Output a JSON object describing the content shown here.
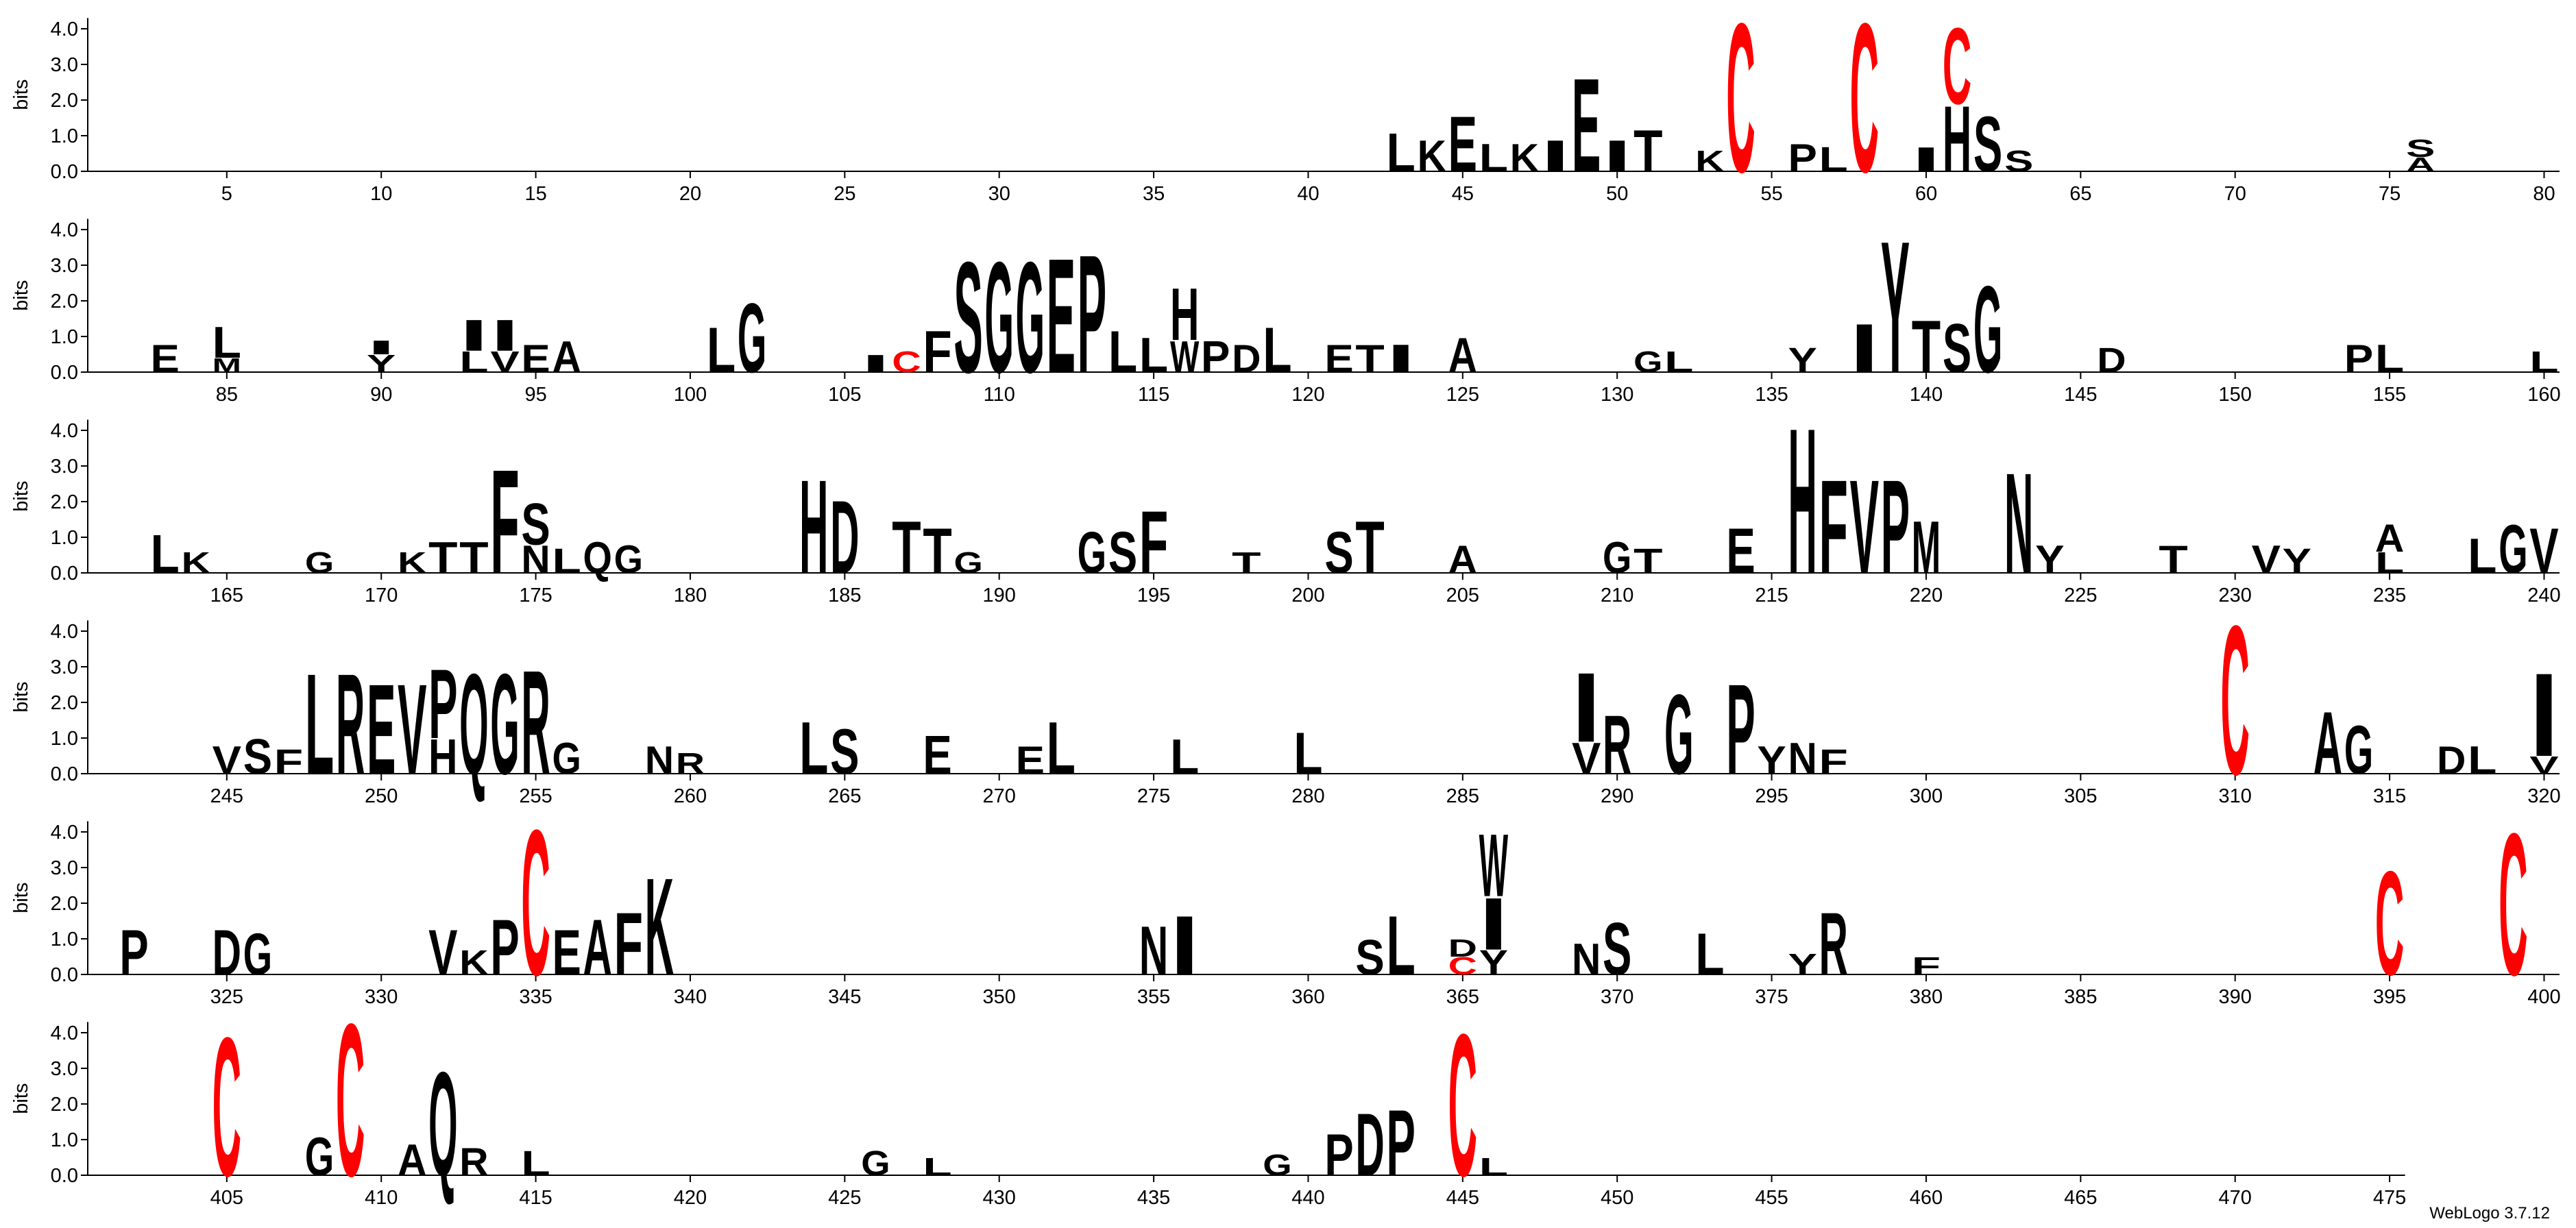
{
  "chart_data": {
    "type": "logo",
    "ylabel": "bits",
    "footer": "WebLogo 3.7.12",
    "ylim": [
      0,
      4.3
    ],
    "yticks": [
      {
        "value": 0,
        "label": "0.0"
      },
      {
        "value": 1,
        "label": "1.0"
      },
      {
        "value": 2,
        "label": "2.0"
      },
      {
        "value": 3,
        "label": "3.0"
      },
      {
        "value": 4,
        "label": "4.0"
      }
    ],
    "color": "#000000",
    "letter_colors": {
      "C": "#ff0000"
    },
    "rows": [
      {
        "xlim": [
          0.5,
          80.5
        ],
        "xticks": [
          5,
          10,
          15,
          20,
          25,
          30,
          35,
          40,
          45,
          50,
          55,
          60,
          65,
          70,
          75,
          80
        ]
      },
      {
        "xlim": [
          80.5,
          160.5
        ],
        "xticks": [
          85,
          90,
          95,
          100,
          105,
          110,
          115,
          120,
          125,
          130,
          135,
          140,
          145,
          150,
          155,
          160
        ]
      },
      {
        "xlim": [
          160.5,
          240.5
        ],
        "xticks": [
          165,
          170,
          175,
          180,
          185,
          190,
          195,
          200,
          205,
          210,
          215,
          220,
          225,
          230,
          235,
          240
        ]
      },
      {
        "xlim": [
          240.5,
          320.5
        ],
        "xticks": [
          245,
          250,
          255,
          260,
          265,
          270,
          275,
          280,
          285,
          290,
          295,
          300,
          305,
          310,
          315,
          320
        ]
      },
      {
        "xlim": [
          320.5,
          400.5
        ],
        "xticks": [
          325,
          330,
          335,
          340,
          345,
          350,
          355,
          360,
          365,
          370,
          375,
          380,
          385,
          390,
          395,
          400
        ]
      },
      {
        "xlim": [
          400.5,
          475.5
        ],
        "xticks": [
          405,
          410,
          415,
          420,
          425,
          430,
          435,
          440,
          445,
          450,
          455,
          460,
          465,
          470,
          475
        ]
      }
    ],
    "letters": [
      {
        "position": 43,
        "letter": "L",
        "bits": 1.1
      },
      {
        "position": 44,
        "letter": "K",
        "bits": 0.9
      },
      {
        "position": 45,
        "letter": "E",
        "bits": 1.6
      },
      {
        "position": 46,
        "letter": "L",
        "bits": 0.8
      },
      {
        "position": 47,
        "letter": "K",
        "bits": 0.8
      },
      {
        "position": 48,
        "letter": "I",
        "bits": 0.9
      },
      {
        "position": 49,
        "letter": "E",
        "bits": 2.7
      },
      {
        "position": 50,
        "letter": "I",
        "bits": 0.9
      },
      {
        "position": 51,
        "letter": "T",
        "bits": 1.2
      },
      {
        "position": 53,
        "letter": "K",
        "bits": 0.6
      },
      {
        "position": 54,
        "letter": "C",
        "bits": 4.3
      },
      {
        "position": 56,
        "letter": "P",
        "bits": 0.8
      },
      {
        "position": 57,
        "letter": "L",
        "bits": 0.7
      },
      {
        "position": 58,
        "letter": "C",
        "bits": 4.3
      },
      {
        "position": 60,
        "letter": "I",
        "bits": 0.7
      },
      {
        "position": 61,
        "letter": "H",
        "bits": 1.9
      },
      {
        "position": 61,
        "letter": "C",
        "bits": 2.2
      },
      {
        "position": 62,
        "letter": "S",
        "bits": 1.6
      },
      {
        "position": 63,
        "letter": "S",
        "bits": 0.6
      },
      {
        "position": 76,
        "letter": "A",
        "bits": 0.4
      },
      {
        "position": 76,
        "letter": "S",
        "bits": 0.5
      },
      {
        "position": 83,
        "letter": "E",
        "bits": 0.8
      },
      {
        "position": 85,
        "letter": "M",
        "bits": 0.4
      },
      {
        "position": 85,
        "letter": "L",
        "bits": 0.9
      },
      {
        "position": 90,
        "letter": "Y",
        "bits": 0.5
      },
      {
        "position": 90,
        "letter": "I",
        "bits": 0.4
      },
      {
        "position": 93,
        "letter": "L",
        "bits": 0.6
      },
      {
        "position": 93,
        "letter": "I",
        "bits": 0.9
      },
      {
        "position": 94,
        "letter": "V",
        "bits": 0.6
      },
      {
        "position": 94,
        "letter": "I",
        "bits": 0.9
      },
      {
        "position": 95,
        "letter": "E",
        "bits": 0.8
      },
      {
        "position": 96,
        "letter": "A",
        "bits": 0.9
      },
      {
        "position": 101,
        "letter": "L",
        "bits": 1.3
      },
      {
        "position": 102,
        "letter": "G",
        "bits": 2.0
      },
      {
        "position": 106,
        "letter": "I",
        "bits": 0.5
      },
      {
        "position": 107,
        "letter": "C",
        "bits": 0.6
      },
      {
        "position": 108,
        "letter": "F",
        "bits": 1.2
      },
      {
        "position": 109,
        "letter": "S",
        "bits": 3.2
      },
      {
        "position": 110,
        "letter": "G",
        "bits": 3.2
      },
      {
        "position": 111,
        "letter": "G",
        "bits": 3.2
      },
      {
        "position": 112,
        "letter": "E",
        "bits": 3.3
      },
      {
        "position": 113,
        "letter": "P",
        "bits": 3.4
      },
      {
        "position": 114,
        "letter": "L",
        "bits": 1.2
      },
      {
        "position": 115,
        "letter": "L",
        "bits": 1.0
      },
      {
        "position": 116,
        "letter": "W",
        "bits": 0.9
      },
      {
        "position": 116,
        "letter": "H",
        "bits": 1.5
      },
      {
        "position": 117,
        "letter": "P",
        "bits": 0.9
      },
      {
        "position": 118,
        "letter": "D",
        "bits": 0.8
      },
      {
        "position": 119,
        "letter": "L",
        "bits": 1.3
      },
      {
        "position": 121,
        "letter": "E",
        "bits": 0.8
      },
      {
        "position": 122,
        "letter": "T",
        "bits": 0.8
      },
      {
        "position": 123,
        "letter": "I",
        "bits": 0.8
      },
      {
        "position": 125,
        "letter": "A",
        "bits": 1.0
      },
      {
        "position": 131,
        "letter": "G",
        "bits": 0.6
      },
      {
        "position": 132,
        "letter": "L",
        "bits": 0.6
      },
      {
        "position": 136,
        "letter": "Y",
        "bits": 0.7
      },
      {
        "position": 138,
        "letter": "I",
        "bits": 1.4
      },
      {
        "position": 139,
        "letter": "Y",
        "bits": 3.8
      },
      {
        "position": 140,
        "letter": "T",
        "bits": 1.5
      },
      {
        "position": 141,
        "letter": "S",
        "bits": 1.4
      },
      {
        "position": 142,
        "letter": "G",
        "bits": 2.5
      },
      {
        "position": 146,
        "letter": "D",
        "bits": 0.7
      },
      {
        "position": 154,
        "letter": "P",
        "bits": 0.8
      },
      {
        "position": 155,
        "letter": "L",
        "bits": 0.8
      },
      {
        "position": 160,
        "letter": "L",
        "bits": 0.6
      },
      {
        "position": 163,
        "letter": "L",
        "bits": 1.1
      },
      {
        "position": 164,
        "letter": "K",
        "bits": 0.6
      },
      {
        "position": 168,
        "letter": "G",
        "bits": 0.6
      },
      {
        "position": 171,
        "letter": "K",
        "bits": 0.6
      },
      {
        "position": 172,
        "letter": "T",
        "bits": 0.9
      },
      {
        "position": 173,
        "letter": "T",
        "bits": 0.9
      },
      {
        "position": 174,
        "letter": "F",
        "bits": 3.0
      },
      {
        "position": 175,
        "letter": "N",
        "bits": 0.8
      },
      {
        "position": 175,
        "letter": "S",
        "bits": 1.2
      },
      {
        "position": 176,
        "letter": "L",
        "bits": 0.7
      },
      {
        "position": 177,
        "letter": "Q",
        "bits": 0.9
      },
      {
        "position": 178,
        "letter": "G",
        "bits": 0.8
      },
      {
        "position": 184,
        "letter": "H",
        "bits": 2.7
      },
      {
        "position": 185,
        "letter": "D",
        "bits": 2.1
      },
      {
        "position": 187,
        "letter": "T",
        "bits": 1.5
      },
      {
        "position": 188,
        "letter": "T",
        "bits": 1.3
      },
      {
        "position": 189,
        "letter": "G",
        "bits": 0.6
      },
      {
        "position": 193,
        "letter": "G",
        "bits": 1.2
      },
      {
        "position": 194,
        "letter": "S",
        "bits": 1.2
      },
      {
        "position": 195,
        "letter": "F",
        "bits": 1.8
      },
      {
        "position": 198,
        "letter": "T",
        "bits": 0.6
      },
      {
        "position": 201,
        "letter": "S",
        "bits": 1.2
      },
      {
        "position": 202,
        "letter": "T",
        "bits": 1.5
      },
      {
        "position": 205,
        "letter": "A",
        "bits": 0.8
      },
      {
        "position": 210,
        "letter": "G",
        "bits": 0.9
      },
      {
        "position": 211,
        "letter": "T",
        "bits": 0.7
      },
      {
        "position": 214,
        "letter": "E",
        "bits": 1.3
      },
      {
        "position": 216,
        "letter": "H",
        "bits": 4.2
      },
      {
        "position": 217,
        "letter": "F",
        "bits": 2.7
      },
      {
        "position": 218,
        "letter": "V",
        "bits": 2.7
      },
      {
        "position": 219,
        "letter": "P",
        "bits": 2.7
      },
      {
        "position": 220,
        "letter": "M",
        "bits": 1.5
      },
      {
        "position": 223,
        "letter": "N",
        "bits": 2.9
      },
      {
        "position": 224,
        "letter": "Y",
        "bits": 0.8
      },
      {
        "position": 228,
        "letter": "T",
        "bits": 0.8
      },
      {
        "position": 231,
        "letter": "V",
        "bits": 0.8
      },
      {
        "position": 232,
        "letter": "Y",
        "bits": 0.7
      },
      {
        "position": 235,
        "letter": "L",
        "bits": 0.6
      },
      {
        "position": 235,
        "letter": "A",
        "bits": 0.8
      },
      {
        "position": 238,
        "letter": "L",
        "bits": 1.0
      },
      {
        "position": 239,
        "letter": "G",
        "bits": 1.4
      },
      {
        "position": 240,
        "letter": "V",
        "bits": 1.3
      },
      {
        "position": 245,
        "letter": "V",
        "bits": 0.8
      },
      {
        "position": 246,
        "letter": "S",
        "bits": 1.0
      },
      {
        "position": 247,
        "letter": "F",
        "bits": 0.7
      },
      {
        "position": 248,
        "letter": "L",
        "bits": 2.9
      },
      {
        "position": 249,
        "letter": "R",
        "bits": 2.9
      },
      {
        "position": 250,
        "letter": "E",
        "bits": 2.6
      },
      {
        "position": 251,
        "letter": "V",
        "bits": 2.6
      },
      {
        "position": 252,
        "letter": "H",
        "bits": 1.0
      },
      {
        "position": 252,
        "letter": "P",
        "bits": 2.0
      },
      {
        "position": 253,
        "letter": "Q",
        "bits": 2.9
      },
      {
        "position": 254,
        "letter": "G",
        "bits": 2.9
      },
      {
        "position": 255,
        "letter": "R",
        "bits": 3.0
      },
      {
        "position": 256,
        "letter": "G",
        "bits": 0.9
      },
      {
        "position": 259,
        "letter": "N",
        "bits": 0.8
      },
      {
        "position": 260,
        "letter": "R",
        "bits": 0.6
      },
      {
        "position": 264,
        "letter": "L",
        "bits": 1.5
      },
      {
        "position": 265,
        "letter": "S",
        "bits": 1.3
      },
      {
        "position": 268,
        "letter": "E",
        "bits": 1.1
      },
      {
        "position": 271,
        "letter": "E",
        "bits": 0.8
      },
      {
        "position": 272,
        "letter": "L",
        "bits": 1.5
      },
      {
        "position": 276,
        "letter": "L",
        "bits": 1.0
      },
      {
        "position": 280,
        "letter": "L",
        "bits": 1.2
      },
      {
        "position": 289,
        "letter": "V",
        "bits": 0.9
      },
      {
        "position": 289,
        "letter": "I",
        "bits": 2.0
      },
      {
        "position": 290,
        "letter": "R",
        "bits": 1.7
      },
      {
        "position": 292,
        "letter": "G",
        "bits": 2.3
      },
      {
        "position": 294,
        "letter": "P",
        "bits": 2.6
      },
      {
        "position": 295,
        "letter": "Y",
        "bits": 0.8
      },
      {
        "position": 296,
        "letter": "N",
        "bits": 0.9
      },
      {
        "position": 297,
        "letter": "F",
        "bits": 0.7
      },
      {
        "position": 310,
        "letter": "C",
        "bits": 4.3
      },
      {
        "position": 313,
        "letter": "A",
        "bits": 1.8
      },
      {
        "position": 314,
        "letter": "G",
        "bits": 1.4
      },
      {
        "position": 317,
        "letter": "D",
        "bits": 0.8
      },
      {
        "position": 318,
        "letter": "L",
        "bits": 0.8
      },
      {
        "position": 320,
        "letter": "V",
        "bits": 0.5
      },
      {
        "position": 320,
        "letter": "I",
        "bits": 2.4
      },
      {
        "position": 322,
        "letter": "P",
        "bits": 1.3
      },
      {
        "position": 325,
        "letter": "D",
        "bits": 1.3
      },
      {
        "position": 326,
        "letter": "G",
        "bits": 1.2
      },
      {
        "position": 332,
        "letter": "V",
        "bits": 1.3
      },
      {
        "position": 333,
        "letter": "K",
        "bits": 0.7
      },
      {
        "position": 334,
        "letter": "P",
        "bits": 1.6
      },
      {
        "position": 335,
        "letter": "C",
        "bits": 4.2
      },
      {
        "position": 336,
        "letter": "E",
        "bits": 1.3
      },
      {
        "position": 337,
        "letter": "A",
        "bits": 1.6
      },
      {
        "position": 338,
        "letter": "F",
        "bits": 1.8
      },
      {
        "position": 339,
        "letter": "K",
        "bits": 2.8
      },
      {
        "position": 355,
        "letter": "N",
        "bits": 1.4
      },
      {
        "position": 356,
        "letter": "I",
        "bits": 1.7
      },
      {
        "position": 362,
        "letter": "S",
        "bits": 1.0
      },
      {
        "position": 363,
        "letter": "L",
        "bits": 1.7
      },
      {
        "position": 365,
        "letter": "C",
        "bits": 0.5
      },
      {
        "position": 365,
        "letter": "D",
        "bits": 0.5
      },
      {
        "position": 366,
        "letter": "Y",
        "bits": 0.7
      },
      {
        "position": 366,
        "letter": "I",
        "bits": 1.5
      },
      {
        "position": 366,
        "letter": "W",
        "bits": 1.8
      },
      {
        "position": 369,
        "letter": "N",
        "bits": 0.9
      },
      {
        "position": 370,
        "letter": "S",
        "bits": 1.5
      },
      {
        "position": 373,
        "letter": "L",
        "bits": 1.2
      },
      {
        "position": 376,
        "letter": "Y",
        "bits": 0.6
      },
      {
        "position": 377,
        "letter": "R",
        "bits": 1.8
      },
      {
        "position": 380,
        "letter": "F",
        "bits": 0.5
      },
      {
        "position": 395,
        "letter": "C",
        "bits": 3.0
      },
      {
        "position": 399,
        "letter": "C",
        "bits": 4.1
      },
      {
        "position": 405,
        "letter": "C",
        "bits": 4.0
      },
      {
        "position": 408,
        "letter": "G",
        "bits": 1.1
      },
      {
        "position": 409,
        "letter": "C",
        "bits": 4.4
      },
      {
        "position": 411,
        "letter": "A",
        "bits": 0.9
      },
      {
        "position": 412,
        "letter": "Q",
        "bits": 3.0
      },
      {
        "position": 413,
        "letter": "R",
        "bits": 0.8
      },
      {
        "position": 415,
        "letter": "L",
        "bits": 0.7
      },
      {
        "position": 426,
        "letter": "G",
        "bits": 0.7
      },
      {
        "position": 428,
        "letter": "L",
        "bits": 0.5
      },
      {
        "position": 439,
        "letter": "G",
        "bits": 0.6
      },
      {
        "position": 441,
        "letter": "P",
        "bits": 1.2
      },
      {
        "position": 442,
        "letter": "D",
        "bits": 1.8
      },
      {
        "position": 443,
        "letter": "P",
        "bits": 1.9
      },
      {
        "position": 445,
        "letter": "C",
        "bits": 4.1
      },
      {
        "position": 446,
        "letter": "L",
        "bits": 0.5
      }
    ]
  }
}
